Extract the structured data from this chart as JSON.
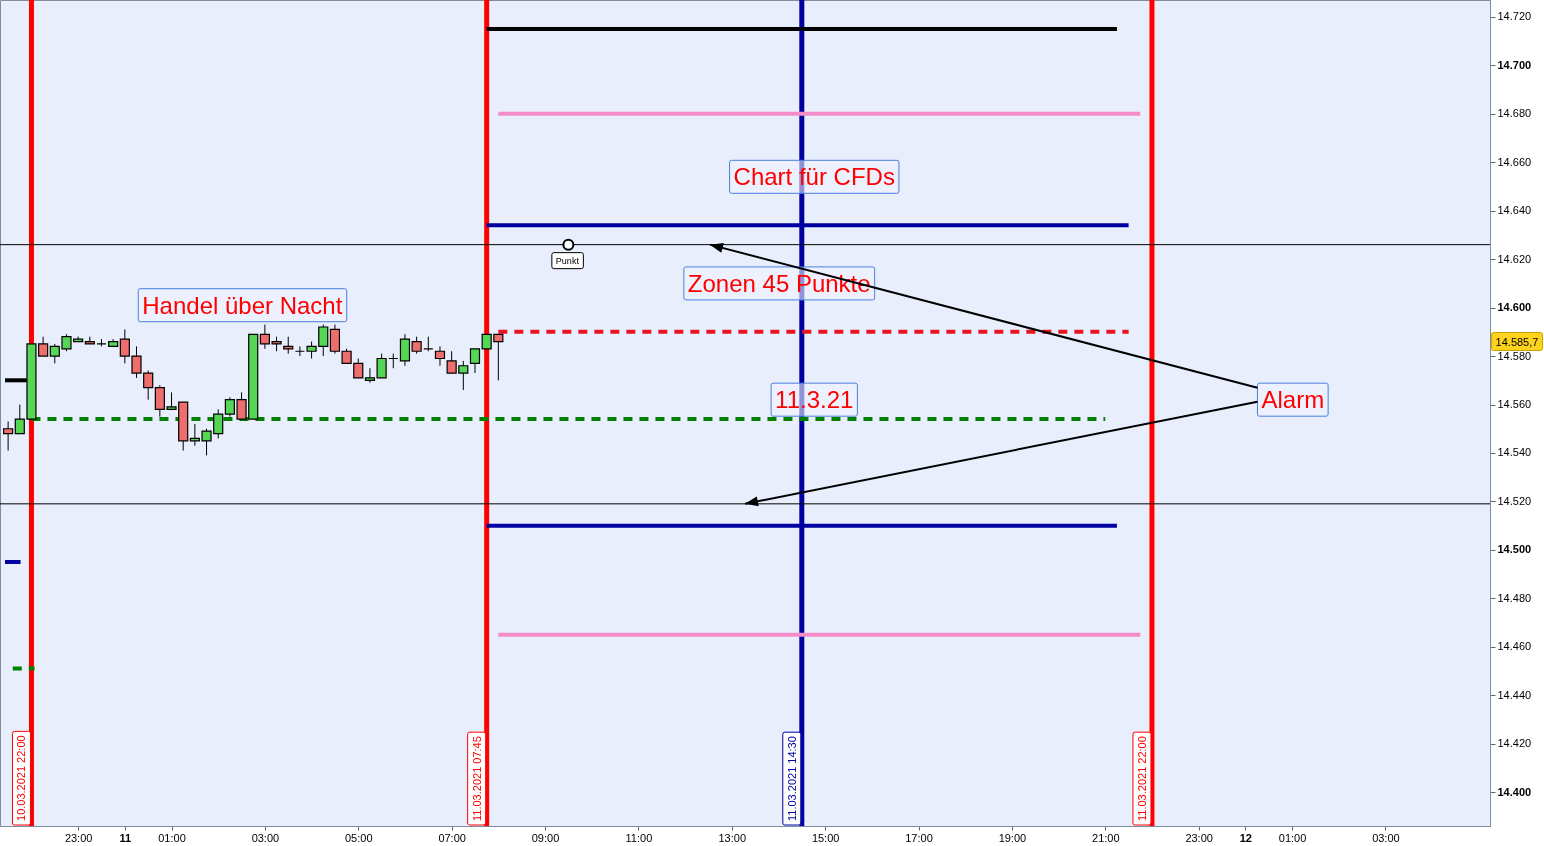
{
  "chart_data": {
    "type": "candlestick",
    "x": [
      "2021-03-10T21:30",
      "2021-03-10T21:45",
      "2021-03-10T22:00",
      "2021-03-10T22:15",
      "2021-03-10T22:30",
      "2021-03-10T22:45",
      "2021-03-10T23:00",
      "2021-03-10T23:15",
      "2021-03-10T23:30",
      "2021-03-10T23:45",
      "2021-03-11T00:00",
      "2021-03-11T00:15",
      "2021-03-11T00:30",
      "2021-03-11T00:45",
      "2021-03-11T01:00",
      "2021-03-11T01:15",
      "2021-03-11T01:30",
      "2021-03-11T01:45",
      "2021-03-11T02:00",
      "2021-03-11T02:15",
      "2021-03-11T02:30",
      "2021-03-11T02:45",
      "2021-03-11T03:00",
      "2021-03-11T03:15",
      "2021-03-11T03:30",
      "2021-03-11T03:45",
      "2021-03-11T04:00",
      "2021-03-11T04:15",
      "2021-03-11T04:30",
      "2021-03-11T04:45",
      "2021-03-11T05:00",
      "2021-03-11T05:15",
      "2021-03-11T05:30",
      "2021-03-11T05:45",
      "2021-03-11T06:00",
      "2021-03-11T06:15",
      "2021-03-11T06:30",
      "2021-03-11T06:45",
      "2021-03-11T07:00",
      "2021-03-11T07:15",
      "2021-03-11T07:30",
      "2021-03-11T07:45",
      "2021-03-11T08:00"
    ],
    "ohlc": [
      [
        14550,
        14553,
        14541,
        14548
      ],
      [
        14548,
        14560,
        14548,
        14554
      ],
      [
        14554,
        14585,
        14554,
        14585
      ],
      [
        14585,
        14588,
        14580,
        14580
      ],
      [
        14580,
        14585,
        14577,
        14584
      ],
      [
        14583,
        14589,
        14582,
        14588
      ],
      [
        14586,
        14588,
        14586,
        14587
      ],
      [
        14586,
        14588,
        14585,
        14585
      ],
      [
        14585,
        14587,
        14584,
        14585
      ],
      [
        14584,
        14587,
        14584,
        14586
      ],
      [
        14587,
        14591,
        14577,
        14580
      ],
      [
        14580,
        14584,
        14571,
        14573
      ],
      [
        14573,
        14574,
        14562,
        14567
      ],
      [
        14567,
        14568,
        14555,
        14558
      ],
      [
        14558,
        14565,
        14558,
        14559
      ],
      [
        14561,
        14561,
        14541,
        14545
      ],
      [
        14545,
        14552,
        14543,
        14546
      ],
      [
        14545,
        14550,
        14539,
        14549
      ],
      [
        14548,
        14558,
        14546,
        14556
      ],
      [
        14556,
        14563,
        14555,
        14562
      ],
      [
        14562,
        14565,
        14554,
        14554
      ],
      [
        14554,
        14589,
        14554,
        14589
      ],
      [
        14589,
        14593,
        14583,
        14585
      ],
      [
        14586,
        14588,
        14582,
        14585
      ],
      [
        14584,
        14588,
        14581,
        14583
      ],
      [
        14582,
        14584,
        14580,
        14582
      ],
      [
        14582,
        14586,
        14579,
        14584
      ],
      [
        14584,
        14593,
        14580,
        14592
      ],
      [
        14591,
        14593,
        14581,
        14582
      ],
      [
        14582,
        14583,
        14577,
        14577
      ],
      [
        14577,
        14579,
        14571,
        14571
      ],
      [
        14570,
        14575,
        14569,
        14571
      ],
      [
        14571,
        14581,
        14571,
        14579
      ],
      [
        14579,
        14581,
        14575,
        14579
      ],
      [
        14578,
        14589,
        14576,
        14587
      ],
      [
        14586,
        14588,
        14581,
        14582
      ],
      [
        14583,
        14588,
        14582,
        14583
      ],
      [
        14582,
        14584,
        14576,
        14579
      ],
      [
        14578,
        14582,
        14573,
        14573
      ],
      [
        14573,
        14578,
        14566,
        14576
      ],
      [
        14577,
        14583,
        14573,
        14583
      ],
      [
        14583,
        14589,
        14583,
        14589
      ],
      [
        14589,
        14589,
        14570,
        14586
      ]
    ],
    "series": [
      {
        "type": "line",
        "color": "#000000",
        "x": [
          "2021-03-11T07:45",
          "2021-03-11T21:15"
        ],
        "values": [
          14715,
          14715
        ]
      },
      {
        "type": "line",
        "color": "#f58cc8",
        "x": [
          "2021-03-11T08:00",
          "2021-03-11T21:45"
        ],
        "values": [
          14680,
          14680
        ]
      },
      {
        "type": "line",
        "color": "#0000a0",
        "x": [
          "2021-03-11T07:45",
          "2021-03-11T21:30"
        ],
        "values": [
          14634,
          14634
        ]
      },
      {
        "type": "line",
        "color": "#e8141e",
        "line_style": "dashed",
        "x": [
          "2021-03-11T08:00",
          "2021-03-11T21:30"
        ],
        "values": [
          14590,
          14590
        ]
      },
      {
        "type": "line",
        "color": "#008000",
        "line_style": "dashed",
        "x": [
          "2021-03-10T22:00",
          "2021-03-11T21:00"
        ],
        "values": [
          14554,
          14554
        ]
      },
      {
        "type": "line",
        "color": "#0000a0",
        "x": [
          "2021-03-11T07:45",
          "2021-03-11T21:15"
        ],
        "values": [
          14510,
          14510
        ]
      },
      {
        "type": "line",
        "color": "#f58cc8",
        "x": [
          "2021-03-11T08:00",
          "2021-03-11T21:45"
        ],
        "values": [
          14465,
          14465
        ]
      },
      {
        "type": "line",
        "color": "#000000",
        "x": [
          "2021-03-10T21:26",
          "2021-03-10T21:54"
        ],
        "values": [
          14570,
          14570
        ]
      },
      {
        "type": "line",
        "color": "#0000a0",
        "x": [
          "2021-03-10T21:26",
          "2021-03-10T21:46"
        ],
        "values": [
          14495,
          14495
        ]
      },
      {
        "type": "line",
        "color": "#008000",
        "line_style": "dashed",
        "x": [
          "2021-03-10T21:36",
          "2021-03-10T22:04"
        ],
        "values": [
          14451,
          14451
        ]
      }
    ],
    "ref_lines": [
      {
        "axis": "x",
        "value": "2021-03-10T22:00",
        "label": "10.03.2021 22:00",
        "color": "#ff0000"
      },
      {
        "axis": "x",
        "value": "2021-03-11T07:45",
        "label": "11.03.2021 07:45",
        "color": "#ff0000"
      },
      {
        "axis": "x",
        "value": "2021-03-11T14:30",
        "label": "11.03.2021 14:30",
        "color": "#0000a0"
      },
      {
        "axis": "x",
        "value": "2021-03-11T22:00",
        "label": "11.03.2021 22:00",
        "color": "#ff0000"
      },
      {
        "axis": "y",
        "value": 14626,
        "color": "#000000"
      },
      {
        "axis": "y",
        "value": 14519,
        "color": "#000000"
      }
    ],
    "annotations": [
      "Handel über Nacht",
      "Chart für CFDs",
      "Zonen 45 Punkte",
      "11.3.21",
      {
        "text": "Alarm",
        "x": "2021-03-11T12:32",
        "y": 14626
      },
      {
        "text": "Punkt",
        "x": "2021-03-11T09:30",
        "y": 14626
      },
      "14.585,7"
    ],
    "xlim": [
      "2021-03-10T21:26",
      "2021-03-12T05:08"
    ],
    "xticks": [
      {
        "value": "2021-03-10T23:00",
        "label": "23:00"
      },
      {
        "value": "2021-03-11T00:00",
        "label": "11"
      },
      {
        "value": "2021-03-11T01:00",
        "label": "01:00"
      },
      {
        "value": "2021-03-11T03:00",
        "label": "03:00"
      },
      {
        "value": "2021-03-11T05:00",
        "label": "05:00"
      },
      {
        "value": "2021-03-11T07:00",
        "label": "07:00"
      },
      {
        "value": "2021-03-11T09:00",
        "label": "09:00"
      },
      {
        "value": "2021-03-11T11:00",
        "label": "11:00"
      },
      {
        "value": "2021-03-11T13:00",
        "label": "13:00"
      },
      {
        "value": "2021-03-11T15:00",
        "label": "15:00"
      },
      {
        "value": "2021-03-11T17:00",
        "label": "17:00"
      },
      {
        "value": "2021-03-11T19:00",
        "label": "19:00"
      },
      {
        "value": "2021-03-11T21:00",
        "label": "21:00"
      },
      {
        "value": "2021-03-11T23:00",
        "label": "23:00"
      },
      {
        "value": "2021-03-12T00:00",
        "label": "12"
      },
      {
        "value": "2021-03-12T01:00",
        "label": "01:00"
      },
      {
        "value": "2021-03-12T03:00",
        "label": "03:00"
      }
    ],
    "ylim": [
      14386,
      14727
    ],
    "yticks": [
      {
        "value": 14400,
        "label": "14.400"
      },
      {
        "value": 14420,
        "label": "14.420"
      },
      {
        "value": 14440,
        "label": "14.440"
      },
      {
        "value": 14460,
        "label": "14.460"
      },
      {
        "value": 14480,
        "label": "14.480"
      },
      {
        "value": 14500,
        "label": "14.500"
      },
      {
        "value": 14520,
        "label": "14.520"
      },
      {
        "value": 14540,
        "label": "14.540"
      },
      {
        "value": 14560,
        "label": "14.560"
      },
      {
        "value": 14580,
        "label": "14.580"
      },
      {
        "value": 14600,
        "label": "14.600"
      },
      {
        "value": 14620,
        "label": "14.620"
      },
      {
        "value": 14640,
        "label": "14.640"
      },
      {
        "value": 14660,
        "label": "14.660"
      },
      {
        "value": 14680,
        "label": "14.680"
      },
      {
        "value": 14700,
        "label": "14.700"
      },
      {
        "value": 14720,
        "label": "14.720"
      }
    ]
  }
}
